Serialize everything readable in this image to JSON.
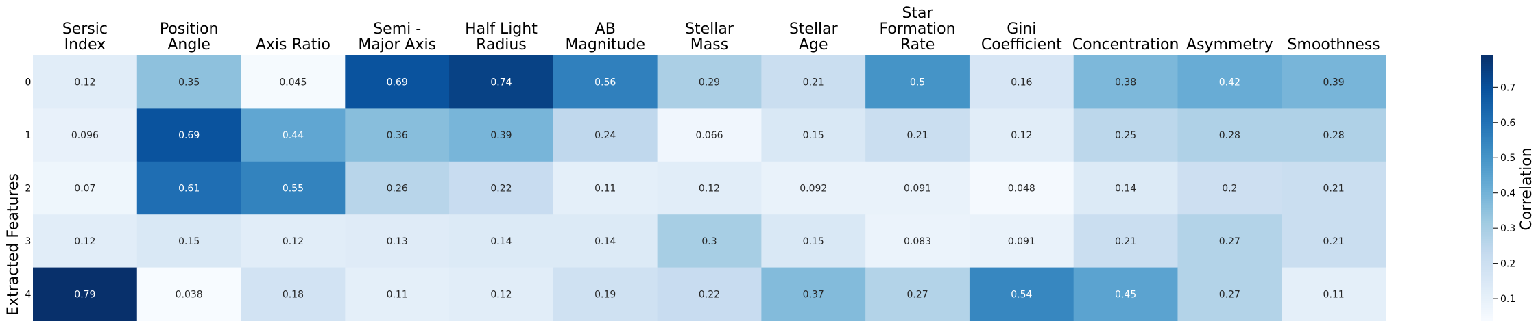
{
  "chart_data": {
    "type": "heatmap",
    "ylabel": "Extracted Features",
    "colorbar_label": "Correlation",
    "columns": [
      [
        "Sersic",
        "Index"
      ],
      [
        "Position",
        "Angle"
      ],
      [
        "Axis Ratio"
      ],
      [
        "Semi -",
        "Major Axis"
      ],
      [
        "Half Light",
        "Radius"
      ],
      [
        "AB",
        "Magnitude"
      ],
      [
        "Stellar",
        "Mass"
      ],
      [
        "Stellar",
        "Age"
      ],
      [
        "Star",
        "Formation",
        "Rate"
      ],
      [
        "Gini",
        "Coefficient"
      ],
      [
        "Concentration"
      ],
      [
        "Asymmetry"
      ],
      [
        "Smoothness"
      ]
    ],
    "rows": [
      "0",
      "1",
      "2",
      "3",
      "4"
    ],
    "values": [
      [
        0.12,
        0.35,
        0.045,
        0.69,
        0.74,
        0.56,
        0.29,
        0.21,
        0.5,
        0.16,
        0.38,
        0.42,
        0.39
      ],
      [
        0.096,
        0.69,
        0.44,
        0.36,
        0.39,
        0.24,
        0.066,
        0.15,
        0.21,
        0.12,
        0.25,
        0.28,
        0.28
      ],
      [
        0.07,
        0.61,
        0.55,
        0.26,
        0.22,
        0.11,
        0.12,
        0.092,
        0.091,
        0.048,
        0.14,
        0.2,
        0.21
      ],
      [
        0.12,
        0.15,
        0.12,
        0.13,
        0.14,
        0.14,
        0.3,
        0.15,
        0.083,
        0.091,
        0.21,
        0.27,
        0.21
      ],
      [
        0.79,
        0.038,
        0.18,
        0.11,
        0.12,
        0.19,
        0.22,
        0.37,
        0.27,
        0.54,
        0.45,
        0.27,
        0.11
      ]
    ],
    "colorscale": "Blues",
    "vmin": 0.038,
    "vmax": 0.79,
    "colorbar_ticks": [
      "0.1",
      "0.2",
      "0.3",
      "0.4",
      "0.5",
      "0.6",
      "0.7"
    ],
    "colors": {
      "low": "#f7fbff",
      "high": "#08306b"
    }
  }
}
